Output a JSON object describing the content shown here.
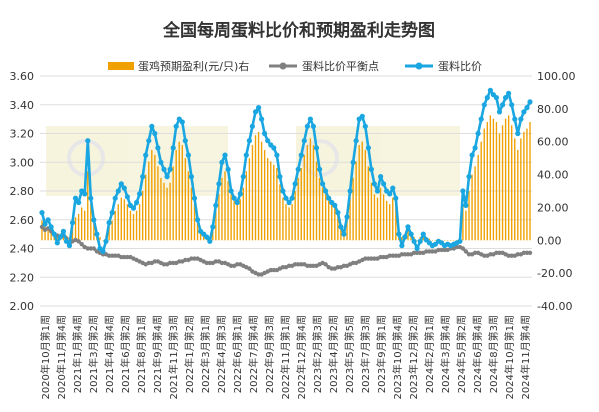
{
  "chart_data": {
    "type": "bar+line",
    "title": "全国每周蛋料比价和预期盈利走势图",
    "legend": [
      {
        "name": "蛋鸡预期盈利(元/只)右",
        "color": "#f0a000",
        "kind": "bar"
      },
      {
        "name": "蛋料比价平衡点",
        "color": "#808080",
        "kind": "line"
      },
      {
        "name": "蛋料比价",
        "color": "#1aa6e0",
        "kind": "line"
      }
    ],
    "watermark": "大连商品交易所",
    "y_left": {
      "min": 2.0,
      "max": 3.6,
      "ticks": [
        "2.00",
        "2.20",
        "2.40",
        "2.60",
        "2.80",
        "3.00",
        "3.20",
        "3.40",
        "3.60"
      ]
    },
    "y_right": {
      "min": -40,
      "max": 100,
      "ticks": [
        "-40.00",
        "-20.00",
        "0.00",
        "20.00",
        "40.00",
        "60.00",
        "80.00",
        "100.00"
      ]
    },
    "x_tick_labels": [
      "2020年10月第1周",
      "2020年11月第4周",
      "2021年1月第4周",
      "2021年3月第2周",
      "2021年4月第4周",
      "2021年6月第2周",
      "2021年8月第1周",
      "2021年9月第4周",
      "2021年11月第3周",
      "2022年1月第2周",
      "2022年3月第1周",
      "2022年4月第3周",
      "2022年6月第1周",
      "2022年7月第4周",
      "2022年9月第3周",
      "2022年11月第1周",
      "2022年12月第4周",
      "2023年2月第3周",
      "2023年4月第2周",
      "2023年5月第5周",
      "2023年7月第3周",
      "2023年9月第1周",
      "2023年10月第4周",
      "2023年12月第2周",
      "2024年2月第1周",
      "2024年3月第4周",
      "2024年5月第2周",
      "2024年6月第4周",
      "2024年8月第3周",
      "2024年10月第1周",
      "2024年11月第4周"
    ],
    "ratio": [
      2.65,
      2.57,
      2.6,
      2.55,
      2.5,
      2.44,
      2.48,
      2.52,
      2.45,
      2.42,
      2.58,
      2.75,
      2.72,
      2.8,
      2.78,
      3.15,
      2.75,
      2.6,
      2.5,
      2.4,
      2.38,
      2.45,
      2.58,
      2.65,
      2.75,
      2.8,
      2.85,
      2.82,
      2.76,
      2.7,
      2.68,
      2.72,
      2.78,
      2.9,
      3.05,
      3.15,
      3.25,
      3.2,
      3.1,
      3.0,
      2.95,
      2.9,
      2.95,
      3.1,
      3.25,
      3.3,
      3.28,
      3.15,
      3.05,
      2.9,
      2.75,
      2.6,
      2.52,
      2.5,
      2.48,
      2.45,
      2.55,
      2.7,
      2.85,
      3.0,
      3.05,
      2.95,
      2.8,
      2.75,
      2.72,
      2.78,
      2.9,
      3.05,
      3.15,
      3.25,
      3.35,
      3.38,
      3.3,
      3.2,
      3.15,
      3.12,
      3.1,
      3.05,
      2.9,
      2.8,
      2.75,
      2.72,
      2.75,
      2.85,
      2.95,
      3.05,
      3.15,
      3.25,
      3.3,
      3.25,
      3.1,
      2.95,
      2.85,
      2.8,
      2.75,
      2.72,
      2.7,
      2.65,
      2.55,
      2.5,
      2.62,
      2.8,
      3.0,
      3.15,
      3.3,
      3.32,
      3.25,
      3.1,
      2.95,
      2.85,
      2.8,
      2.9,
      2.85,
      2.8,
      2.78,
      2.82,
      2.75,
      2.5,
      2.42,
      2.48,
      2.55,
      2.5,
      2.45,
      2.4,
      2.45,
      2.5,
      2.46,
      2.44,
      2.42,
      2.43,
      2.45,
      2.44,
      2.42,
      2.43,
      2.42,
      2.43,
      2.44,
      2.45,
      2.8,
      2.7,
      2.9,
      3.05,
      3.1,
      3.2,
      3.3,
      3.4,
      3.45,
      3.5,
      3.47,
      3.45,
      3.35,
      3.4,
      3.45,
      3.48,
      3.4,
      3.3,
      3.2,
      3.3,
      3.35,
      3.38,
      3.42
    ],
    "balance": [
      2.55,
      2.53,
      2.54,
      2.52,
      2.5,
      2.49,
      2.48,
      2.49,
      2.47,
      2.43,
      2.45,
      2.46,
      2.45,
      2.43,
      2.41,
      2.4,
      2.4,
      2.4,
      2.38,
      2.37,
      2.36,
      2.36,
      2.35,
      2.35,
      2.35,
      2.35,
      2.34,
      2.34,
      2.34,
      2.34,
      2.33,
      2.32,
      2.31,
      2.3,
      2.29,
      2.3,
      2.3,
      2.31,
      2.31,
      2.3,
      2.29,
      2.29,
      2.3,
      2.3,
      2.3,
      2.31,
      2.31,
      2.32,
      2.32,
      2.33,
      2.33,
      2.33,
      2.32,
      2.31,
      2.3,
      2.3,
      2.3,
      2.31,
      2.31,
      2.3,
      2.3,
      2.29,
      2.28,
      2.28,
      2.29,
      2.29,
      2.28,
      2.27,
      2.26,
      2.24,
      2.23,
      2.22,
      2.22,
      2.23,
      2.24,
      2.25,
      2.25,
      2.25,
      2.26,
      2.27,
      2.27,
      2.28,
      2.28,
      2.29,
      2.29,
      2.29,
      2.29,
      2.28,
      2.28,
      2.28,
      2.28,
      2.29,
      2.3,
      2.29,
      2.27,
      2.26,
      2.26,
      2.27,
      2.27,
      2.28,
      2.28,
      2.29,
      2.3,
      2.3,
      2.31,
      2.32,
      2.33,
      2.33,
      2.33,
      2.33,
      2.33,
      2.34,
      2.34,
      2.34,
      2.35,
      2.35,
      2.35,
      2.35,
      2.36,
      2.36,
      2.36,
      2.36,
      2.37,
      2.37,
      2.37,
      2.37,
      2.38,
      2.38,
      2.38,
      2.38,
      2.39,
      2.39,
      2.39,
      2.39,
      2.4,
      2.4,
      2.41,
      2.41,
      2.4,
      2.38,
      2.36,
      2.36,
      2.37,
      2.37,
      2.36,
      2.35,
      2.35,
      2.36,
      2.36,
      2.37,
      2.37,
      2.37,
      2.36,
      2.35,
      2.35,
      2.35,
      2.36,
      2.36,
      2.37,
      2.37,
      2.37
    ],
    "profit": [
      12,
      10,
      8,
      6,
      4,
      2,
      4,
      6,
      3,
      2,
      8,
      14,
      16,
      20,
      18,
      42,
      22,
      10,
      5,
      2,
      0,
      3,
      8,
      12,
      18,
      22,
      26,
      25,
      22,
      18,
      16,
      18,
      22,
      30,
      40,
      48,
      55,
      52,
      45,
      38,
      35,
      32,
      35,
      45,
      55,
      60,
      58,
      50,
      42,
      32,
      22,
      12,
      6,
      4,
      3,
      2,
      8,
      18,
      28,
      38,
      42,
      36,
      28,
      24,
      22,
      25,
      32,
      42,
      50,
      58,
      64,
      66,
      60,
      55,
      50,
      48,
      46,
      44,
      34,
      26,
      22,
      20,
      22,
      30,
      38,
      44,
      52,
      58,
      62,
      58,
      48,
      38,
      32,
      28,
      24,
      22,
      20,
      16,
      10,
      6,
      14,
      26,
      38,
      48,
      58,
      60,
      55,
      45,
      35,
      28,
      26,
      32,
      28,
      24,
      22,
      26,
      22,
      6,
      2,
      4,
      8,
      5,
      2,
      0,
      2,
      4,
      2,
      1,
      0,
      0,
      1,
      0,
      0,
      0,
      0,
      0,
      0,
      1,
      22,
      18,
      30,
      40,
      45,
      52,
      60,
      68,
      72,
      76,
      74,
      72,
      65,
      70,
      74,
      76,
      70,
      62,
      55,
      62,
      66,
      68,
      72
    ]
  }
}
